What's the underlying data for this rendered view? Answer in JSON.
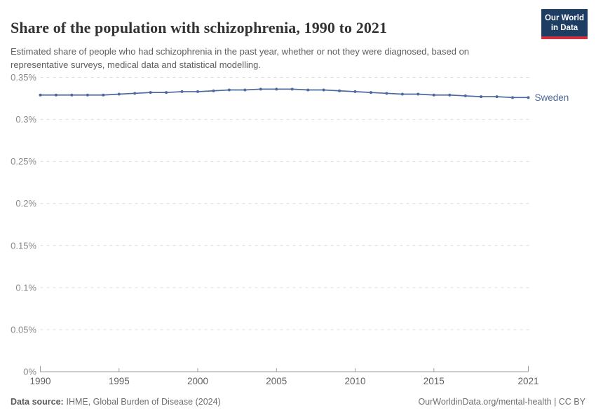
{
  "header": {
    "title": "Share of the population with schizophrenia, 1990 to 2021",
    "subtitle": "Estimated share of people who had schizophrenia in the past year, whether or not they were diagnosed, based on representative surveys, medical data and statistical modelling.",
    "logo": {
      "line1": "Our World",
      "line2": "in Data"
    }
  },
  "footer": {
    "source_label": "Data source:",
    "source_value": "IHME, Global Burden of Disease (2024)",
    "right_text": "OurWorldinData.org/mental-health | CC BY"
  },
  "colors": {
    "line": "#4C6A9C",
    "gridline": "#dcdcdc",
    "axis": "#9e9e9e",
    "logo_bg": "#1d3d63",
    "logo_red": "#cf303e"
  },
  "chart_data": {
    "type": "line",
    "title": "Share of the population with schizophrenia, 1990 to 2021",
    "xlabel": "",
    "ylabel": "",
    "unit": "%",
    "xlim": [
      1990,
      2021
    ],
    "ylim": [
      0,
      0.35
    ],
    "grid": "horizontal-dashed",
    "legend_position": "end-of-line",
    "x": [
      1990,
      1991,
      1992,
      1993,
      1994,
      1995,
      1996,
      1997,
      1998,
      1999,
      2000,
      2001,
      2002,
      2003,
      2004,
      2005,
      2006,
      2007,
      2008,
      2009,
      2010,
      2011,
      2012,
      2013,
      2014,
      2015,
      2016,
      2017,
      2018,
      2019,
      2020,
      2021
    ],
    "series": [
      {
        "name": "Sweden",
        "values": [
          0.329,
          0.329,
          0.329,
          0.329,
          0.329,
          0.33,
          0.331,
          0.332,
          0.332,
          0.333,
          0.333,
          0.334,
          0.335,
          0.335,
          0.336,
          0.336,
          0.336,
          0.335,
          0.335,
          0.334,
          0.333,
          0.332,
          0.331,
          0.33,
          0.33,
          0.329,
          0.329,
          0.328,
          0.327,
          0.327,
          0.326,
          0.326
        ]
      }
    ],
    "yticks": {
      "values": [
        0,
        0.05,
        0.1,
        0.15,
        0.2,
        0.25,
        0.3,
        0.35
      ],
      "labels": [
        "0%",
        "0.05%",
        "0.1%",
        "0.15%",
        "0.2%",
        "0.25%",
        "0.3%",
        "0.35%"
      ]
    },
    "xticks": {
      "values": [
        1990,
        1995,
        2000,
        2005,
        2010,
        2015,
        2021
      ],
      "labels": [
        "1990",
        "1995",
        "2000",
        "2005",
        "2010",
        "2015",
        "2021"
      ]
    }
  }
}
